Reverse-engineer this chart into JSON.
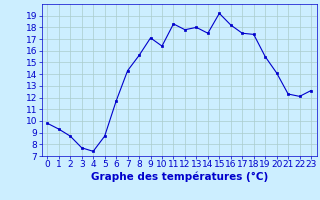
{
  "hours": [
    0,
    1,
    2,
    3,
    4,
    5,
    6,
    7,
    8,
    9,
    10,
    11,
    12,
    13,
    14,
    15,
    16,
    17,
    18,
    19,
    20,
    21,
    22,
    23
  ],
  "temps": [
    9.8,
    9.3,
    8.7,
    7.7,
    7.4,
    8.7,
    11.7,
    14.3,
    15.6,
    17.1,
    16.4,
    18.3,
    17.8,
    18.0,
    17.5,
    19.2,
    18.2,
    17.5,
    17.4,
    15.5,
    14.1,
    12.3,
    12.1,
    12.6
  ],
  "line_color": "#0000cc",
  "marker": "s",
  "marker_size": 2,
  "bg_color": "#cceeff",
  "grid_color": "#aacccc",
  "xlabel": "Graphe des températures (°C)",
  "xlabel_color": "#0000cc",
  "xlabel_fontsize": 7.5,
  "tick_color": "#0000cc",
  "tick_fontsize": 6.5,
  "ylim": [
    7,
    20
  ],
  "xlim": [
    -0.5,
    23.5
  ],
  "yticks": [
    7,
    8,
    9,
    10,
    11,
    12,
    13,
    14,
    15,
    16,
    17,
    18,
    19
  ],
  "xticks": [
    0,
    1,
    2,
    3,
    4,
    5,
    6,
    7,
    8,
    9,
    10,
    11,
    12,
    13,
    14,
    15,
    16,
    17,
    18,
    19,
    20,
    21,
    22,
    23
  ]
}
